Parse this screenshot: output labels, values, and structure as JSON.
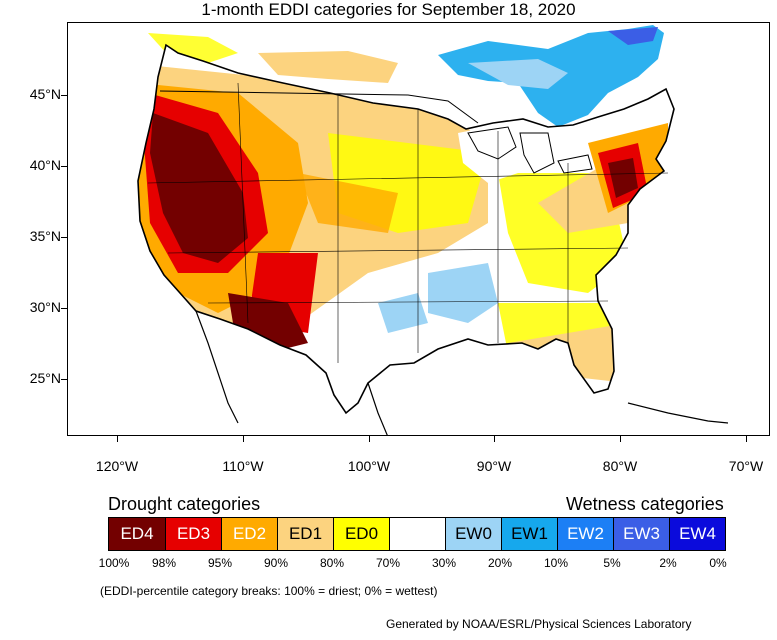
{
  "title": "1-month EDDI categories for September 18, 2020",
  "lat_labels": [
    "45°N",
    "40°N",
    "35°N",
    "30°N",
    "25°N"
  ],
  "lon_labels": [
    "120°W",
    "110°W",
    "100°W",
    "90°W",
    "80°W",
    "70°W"
  ],
  "legend": {
    "drought_heading": "Drought categories",
    "wetness_heading": "Wetness categories",
    "categories": [
      {
        "label": "ED4",
        "color": "#730000",
        "text_color": "#ffffff"
      },
      {
        "label": "ED3",
        "color": "#e60000",
        "text_color": "#ffffff"
      },
      {
        "label": "ED2",
        "color": "#ffaa00",
        "text_color": "#ffffff"
      },
      {
        "label": "ED1",
        "color": "#fcd37f",
        "text_color": "#000000"
      },
      {
        "label": "ED0",
        "color": "#ffff00",
        "text_color": "#000000"
      },
      {
        "label": "",
        "color": "#ffffff",
        "text_color": "#000000"
      },
      {
        "label": "EW0",
        "color": "#9dd4f5",
        "text_color": "#000000"
      },
      {
        "label": "EW1",
        "color": "#16a8ed",
        "text_color": "#000000"
      },
      {
        "label": "EW2",
        "color": "#1c7ff5",
        "text_color": "#ffffff"
      },
      {
        "label": "EW3",
        "color": "#3b5ee6",
        "text_color": "#ffffff"
      },
      {
        "label": "EW4",
        "color": "#0b0bdc",
        "text_color": "#ffffff"
      }
    ],
    "breaks": [
      "100%",
      "98%",
      "95%",
      "90%",
      "80%",
      "70%",
      "30%",
      "20%",
      "10%",
      "5%",
      "2%",
      "0%"
    ]
  },
  "note": "(EDDI-percentile category breaks: 100% = driest; 0% = wettest)",
  "credit": "Generated by NOAA/ESRL/Physical Sciences Laboratory"
}
